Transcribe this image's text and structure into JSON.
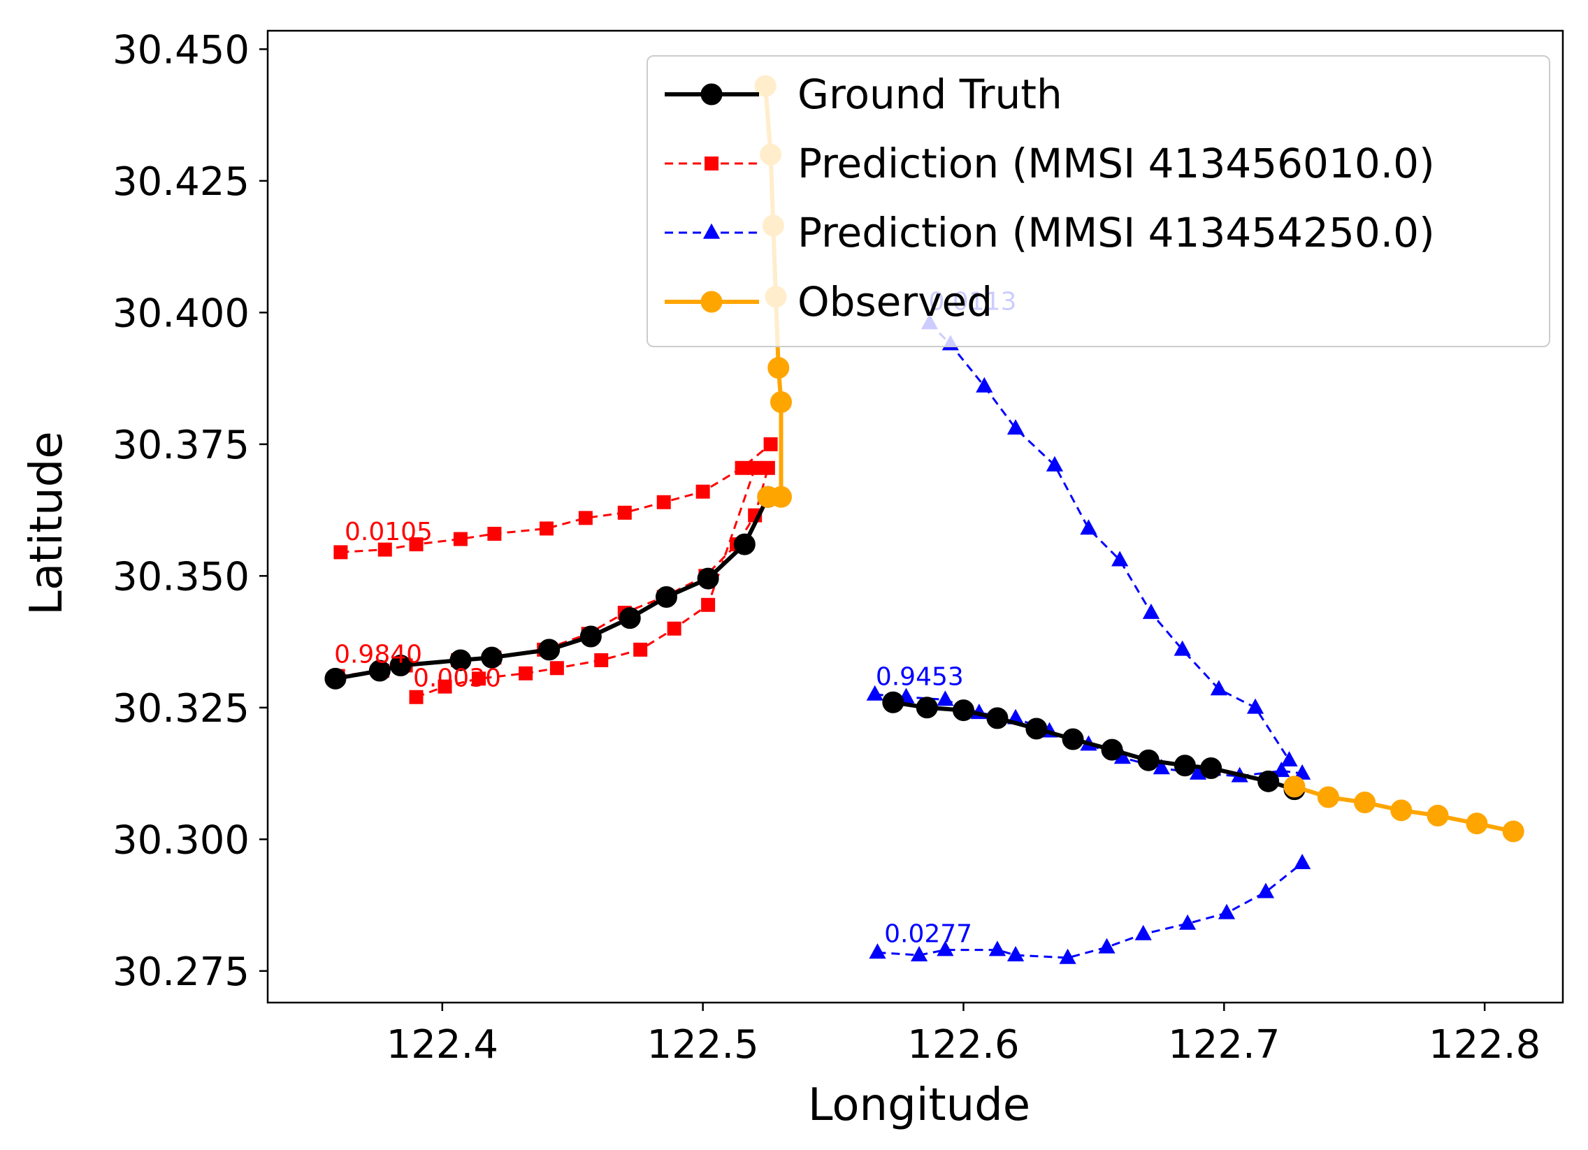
{
  "chart_data": {
    "type": "line",
    "title": "",
    "xlabel": "Longitude",
    "ylabel": "Latitude",
    "xlim": [
      122.333,
      122.83
    ],
    "ylim": [
      30.269,
      30.4535
    ],
    "xticks": [
      122.4,
      122.5,
      122.6,
      122.7,
      122.8
    ],
    "xtick_labels": [
      "122.4",
      "122.5",
      "122.6",
      "122.7",
      "122.8"
    ],
    "yticks": [
      30.275,
      30.3,
      30.325,
      30.35,
      30.375,
      30.4,
      30.425,
      30.45
    ],
    "ytick_labels": [
      "30.275",
      "30.300",
      "30.325",
      "30.350",
      "30.375",
      "30.400",
      "30.425",
      "30.450"
    ],
    "grid": false,
    "legend": {
      "position": "top-right",
      "entries": [
        {
          "label": "Ground Truth",
          "color": "#000000",
          "style": "solid",
          "marker": "circle"
        },
        {
          "label": "Prediction (MMSI 413456010.0)",
          "color": "#ff0000",
          "style": "dashed",
          "marker": "square"
        },
        {
          "label": "Prediction (MMSI 413454250.0)",
          "color": "#0000ff",
          "style": "dashed",
          "marker": "triangle"
        },
        {
          "label": "Observed",
          "color": "#ffa500",
          "style": "solid",
          "marker": "circle"
        }
      ]
    },
    "series": [
      {
        "name": "Observed",
        "color": "#ffa500",
        "style": "solid",
        "marker": "circle",
        "x": [
          122.524,
          122.526,
          122.527,
          122.528,
          122.529,
          122.53,
          122.53,
          122.525
        ],
        "y": [
          30.443,
          30.43,
          30.4165,
          30.403,
          30.3895,
          30.383,
          30.365,
          30.365
        ]
      },
      {
        "name": "Observed",
        "color": "#ffa500",
        "style": "solid",
        "marker": "circle",
        "x": [
          122.727,
          122.74,
          122.754,
          122.768,
          122.782,
          122.797,
          122.811
        ],
        "y": [
          30.31,
          30.308,
          30.307,
          30.3055,
          30.3045,
          30.303,
          30.3015
        ]
      },
      {
        "name": "Ground Truth",
        "color": "#000000",
        "style": "solid",
        "marker": "circle",
        "x": [
          122.359,
          122.376,
          122.384,
          122.407,
          122.419,
          122.441,
          122.457,
          122.472,
          122.486,
          122.502,
          122.516,
          122.525
        ],
        "y": [
          30.3305,
          30.332,
          30.333,
          30.334,
          30.3345,
          30.336,
          30.3385,
          30.342,
          30.346,
          30.3495,
          30.356,
          30.365
        ]
      },
      {
        "name": "Ground Truth",
        "color": "#000000",
        "style": "solid",
        "marker": "circle",
        "x": [
          122.573,
          122.586,
          122.6,
          122.613,
          122.628,
          122.642,
          122.657,
          122.671,
          122.685,
          122.695,
          122.717,
          122.727
        ],
        "y": [
          30.326,
          30.325,
          30.3245,
          30.323,
          30.321,
          30.319,
          30.317,
          30.315,
          30.314,
          30.3135,
          30.311,
          30.3095
        ]
      },
      {
        "name": "Prediction (MMSI 413456010.0)",
        "color": "#ff0000",
        "style": "dashed",
        "marker": "square",
        "x": [
          122.361,
          122.378,
          122.39,
          122.407,
          122.42,
          122.44,
          122.455,
          122.47,
          122.485,
          122.5,
          122.515,
          122.526
        ],
        "y": [
          30.3545,
          30.355,
          30.356,
          30.357,
          30.358,
          30.359,
          30.361,
          30.362,
          30.364,
          30.366,
          30.3705,
          30.375
        ]
      },
      {
        "name": "Prediction (MMSI 413456010.0)",
        "color": "#ff0000",
        "style": "dashed",
        "marker": "square",
        "x": [
          122.36,
          122.377,
          122.386,
          122.406,
          122.42,
          122.439,
          122.456,
          122.47,
          122.485,
          122.501,
          122.513,
          122.52,
          122.525
        ],
        "y": [
          30.331,
          30.332,
          30.333,
          30.334,
          30.3345,
          30.336,
          30.339,
          30.343,
          30.346,
          30.35,
          30.356,
          30.3615,
          30.3705
        ]
      },
      {
        "name": "Prediction (MMSI 413456010.0)",
        "color": "#ff0000",
        "style": "dashed",
        "marker": "square",
        "x": [
          122.39,
          122.401,
          122.414,
          122.432,
          122.444,
          122.461,
          122.476,
          122.489,
          122.502,
          122.52
        ],
        "y": [
          30.327,
          30.329,
          30.3305,
          30.3315,
          30.3325,
          30.334,
          30.336,
          30.34,
          30.3445,
          30.3705
        ]
      },
      {
        "name": "Prediction (MMSI 413454250.0)",
        "color": "#0000ff",
        "style": "dashed",
        "marker": "triangle",
        "x": [
          122.587,
          122.595,
          122.608,
          122.62,
          122.635,
          122.648,
          122.66,
          122.672,
          122.684,
          122.698,
          122.712,
          122.725
        ],
        "y": [
          30.398,
          30.394,
          30.386,
          30.378,
          30.371,
          30.359,
          30.353,
          30.343,
          30.336,
          30.3285,
          30.325,
          30.315
        ]
      },
      {
        "name": "Prediction (MMSI 413454250.0)",
        "color": "#0000ff",
        "style": "dashed",
        "marker": "triangle",
        "x": [
          122.566,
          122.578,
          122.593,
          122.606,
          122.62,
          122.633,
          122.648,
          122.661,
          122.676,
          122.69,
          122.706,
          122.722,
          122.73
        ],
        "y": [
          30.3275,
          30.327,
          30.3265,
          30.324,
          30.323,
          30.3205,
          30.318,
          30.3155,
          30.3135,
          30.3125,
          30.312,
          30.313,
          30.3125
        ]
      },
      {
        "name": "Prediction (MMSI 413454250.0)",
        "color": "#0000ff",
        "style": "dashed",
        "marker": "triangle",
        "x": [
          122.567,
          122.583,
          122.593,
          122.613,
          122.62,
          122.64,
          122.655,
          122.669,
          122.686,
          122.701,
          122.716,
          122.73
        ],
        "y": [
          30.2785,
          30.278,
          30.279,
          30.279,
          30.278,
          30.2775,
          30.2795,
          30.282,
          30.284,
          30.286,
          30.29,
          30.2955
        ]
      }
    ],
    "annotations": [
      {
        "text": "0.0105",
        "x": 122.3625,
        "y": 30.3568,
        "color": "#ff0000"
      },
      {
        "text": "0.9840",
        "x": 122.3585,
        "y": 30.3335,
        "color": "#ff0000"
      },
      {
        "text": "0.0030",
        "x": 122.3888,
        "y": 30.329,
        "color": "#ff0000"
      },
      {
        "text": "0.0113",
        "x": 122.5866,
        "y": 30.4005,
        "color": "#0000ff"
      },
      {
        "text": "0.9453",
        "x": 122.5663,
        "y": 30.3293,
        "color": "#0000ff"
      },
      {
        "text": "0.0277",
        "x": 122.5696,
        "y": 30.2805,
        "color": "#0000ff"
      }
    ]
  }
}
